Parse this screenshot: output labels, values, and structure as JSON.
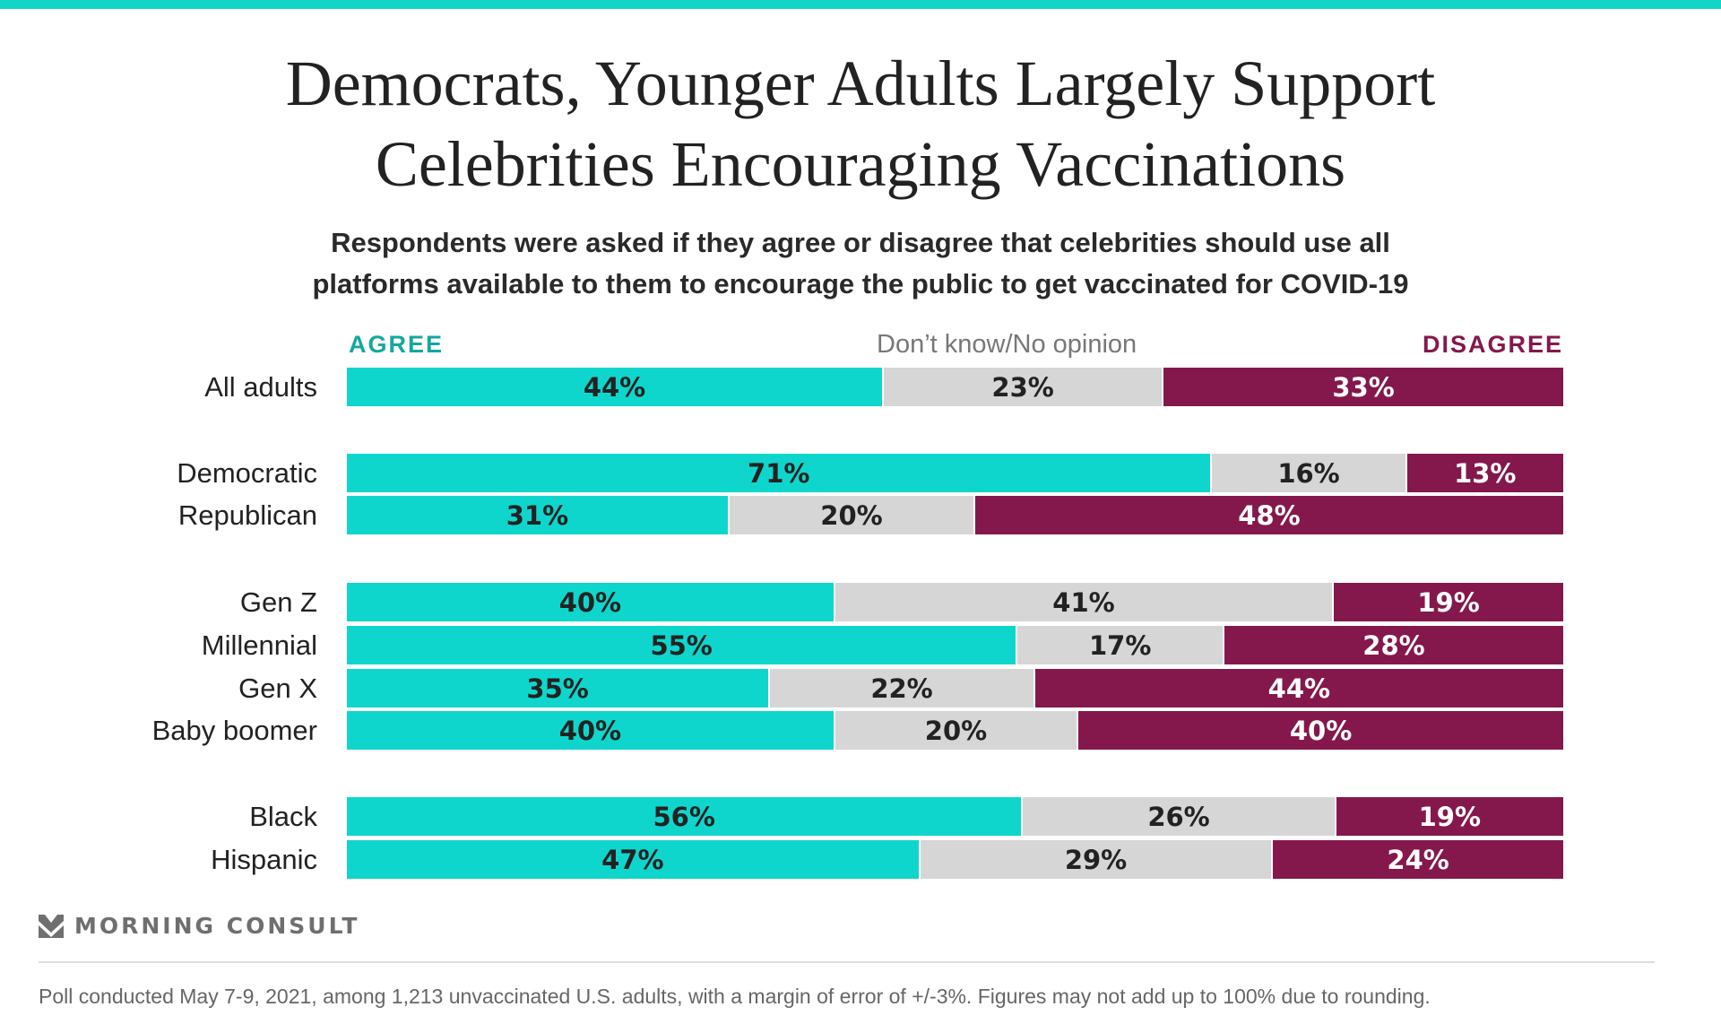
{
  "colors": {
    "agree": "#0fd6cc",
    "dont_know": "#d6d6d6",
    "disagree": "#84184c",
    "accent_bar": "#12d4c8"
  },
  "title_line1": "Democrats, Younger Adults Largely Support",
  "title_line2": "Celebrities Encouraging Vaccinations",
  "subtitle_line1": "Respondents were asked if they agree or disagree that celebrities should use all",
  "subtitle_line2": "platforms available to them to encourage the public to get vaccinated for COVID-19",
  "legend": {
    "agree": "AGREE",
    "dont_know": "Don’t know/No opinion",
    "disagree": "DISAGREE"
  },
  "chart_data": {
    "type": "bar",
    "orientation": "horizontal-stacked-100",
    "categories": [
      "All adults",
      "Democratic",
      "Republican",
      "Gen Z",
      "Millennial",
      "Gen X",
      "Baby boomer",
      "Black",
      "Hispanic"
    ],
    "groups": [
      [
        "All adults"
      ],
      [
        "Democratic",
        "Republican"
      ],
      [
        "Gen Z",
        "Millennial",
        "Gen X",
        "Baby boomer"
      ],
      [
        "Black",
        "Hispanic"
      ]
    ],
    "series": [
      {
        "name": "AGREE",
        "values": [
          44,
          71,
          31,
          40,
          55,
          35,
          40,
          56,
          47
        ]
      },
      {
        "name": "Don’t know/No opinion",
        "values": [
          23,
          16,
          20,
          41,
          17,
          22,
          20,
          26,
          29
        ]
      },
      {
        "name": "DISAGREE",
        "values": [
          33,
          13,
          48,
          19,
          28,
          44,
          40,
          19,
          24
        ]
      }
    ],
    "value_suffix": "%",
    "legend_placement": "top",
    "grid": false
  },
  "logo_text": "MORNING CONSULT",
  "footnote": "Poll conducted May 7-9, 2021, among 1,213 unvaccinated U.S. adults, with a margin of error of +/-3%. Figures may not add up to 100% due to rounding."
}
